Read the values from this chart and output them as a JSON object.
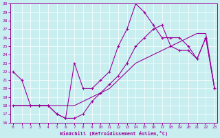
{
  "xlabel": "Windchill (Refroidissement éolien,°C)",
  "bg_color": "#c8eef0",
  "line_color": "#990099",
  "xmin": 0,
  "xmax": 23,
  "ymin": 16,
  "ymax": 30,
  "yticks": [
    16,
    17,
    18,
    19,
    20,
    21,
    22,
    23,
    24,
    25,
    26,
    27,
    28,
    29,
    30
  ],
  "xticks": [
    0,
    1,
    2,
    3,
    4,
    5,
    6,
    7,
    8,
    9,
    10,
    11,
    12,
    13,
    14,
    15,
    16,
    17,
    18,
    19,
    20,
    21,
    22,
    23
  ],
  "line1_x": [
    0,
    1,
    2,
    3,
    4,
    5,
    6,
    7,
    8,
    9,
    10,
    11,
    12,
    13,
    14,
    15,
    16,
    17,
    18,
    19,
    20,
    21,
    22,
    23
  ],
  "line1_y": [
    22,
    21,
    18,
    18,
    18,
    17,
    16.5,
    23,
    20,
    20,
    21,
    22,
    25,
    27,
    30,
    29,
    27.5,
    26,
    26,
    26,
    25,
    23.5,
    26,
    20
  ],
  "line2_x": [
    0,
    2,
    3,
    4,
    5,
    6,
    7,
    8,
    9,
    10,
    11,
    12,
    13,
    14,
    15,
    16,
    17,
    18,
    19,
    20,
    21,
    22,
    23
  ],
  "line2_y": [
    18,
    18,
    18,
    18,
    17,
    16.5,
    16.5,
    17,
    18.5,
    19.5,
    20.5,
    21.5,
    23,
    25,
    26,
    27,
    27.5,
    25,
    24.5,
    24.5,
    23.5,
    26,
    20
  ],
  "line3_x": [
    0,
    1,
    2,
    3,
    4,
    5,
    6,
    7,
    8,
    9,
    10,
    11,
    12,
    13,
    14,
    15,
    16,
    17,
    18,
    19,
    20,
    21,
    22,
    23
  ],
  "line3_y": [
    18,
    18,
    18,
    18,
    18,
    18,
    18,
    18,
    18.5,
    19,
    19.5,
    20,
    21,
    22,
    23,
    23.5,
    24,
    24.5,
    25,
    25.5,
    26,
    26.5,
    26.5,
    20
  ]
}
